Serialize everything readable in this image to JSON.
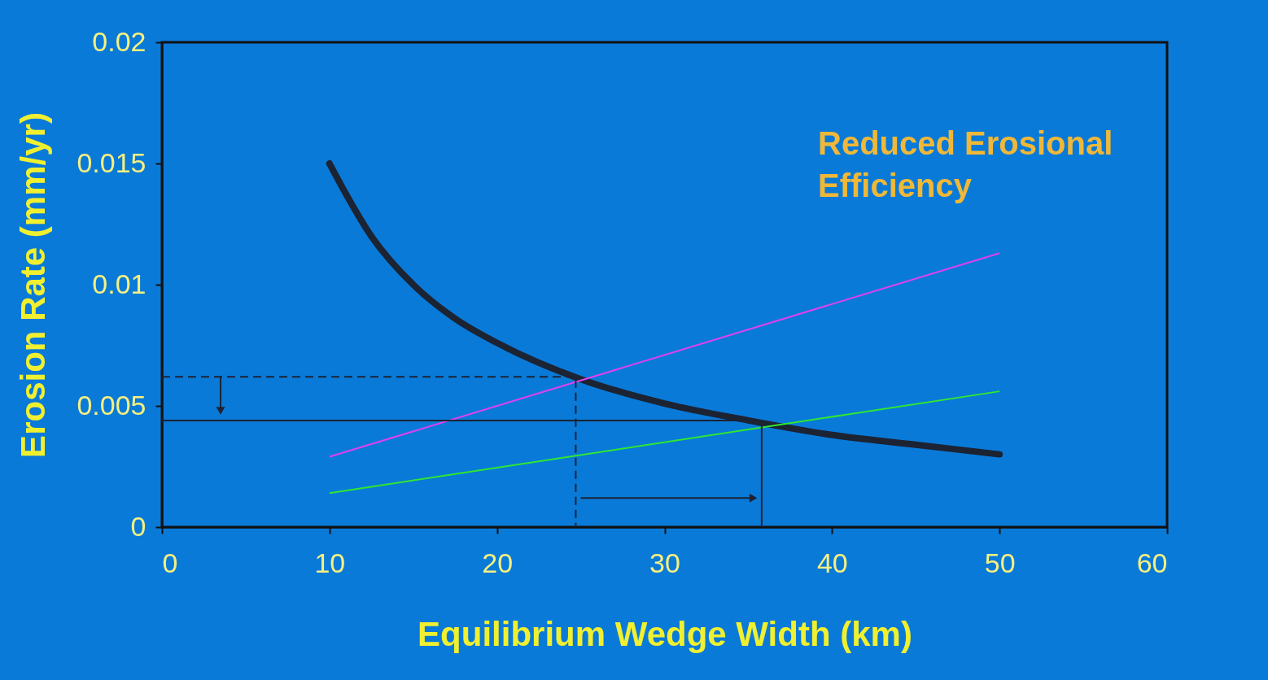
{
  "chart_data": {
    "type": "line",
    "xlabel": "Equilibrium Wedge Width (km)",
    "ylabel": "Erosion Rate (mm/yr)",
    "xlim": [
      0,
      60
    ],
    "ylim": [
      0,
      0.02
    ],
    "xticks": [
      0,
      10,
      20,
      30,
      40,
      50,
      60
    ],
    "yticks": [
      0,
      0.005,
      0.01,
      0.015,
      0.02
    ],
    "annotations": [
      "Reduced Erosional Efficiency"
    ],
    "series": [
      {
        "color": "#1c2333",
        "x": [
          10,
          12.5,
          15,
          17.5,
          20,
          25,
          30,
          35,
          40,
          45,
          50
        ],
        "values": [
          0.015,
          0.012,
          0.01,
          0.0086,
          0.0076,
          0.0061,
          0.0051,
          0.0044,
          0.0038,
          0.0034,
          0.003
        ]
      },
      {
        "color": "#e040f0",
        "x": [
          10,
          50
        ],
        "values": [
          0.0029,
          0.0113
        ]
      },
      {
        "color": "#30e830",
        "x": [
          10,
          50
        ],
        "values": [
          0.0014,
          0.0056
        ]
      },
      {
        "color": "#1c2333",
        "x": [
          0,
          24.7,
          24.7
        ],
        "values": [
          0.0062,
          0.0062,
          0
        ],
        "line_style": "dashed"
      },
      {
        "color": "#1c2333",
        "x": [
          0,
          35.8,
          35.8
        ],
        "values": [
          0.0044,
          0.0044,
          0
        ]
      },
      {
        "color": "#1c2333",
        "x": [
          3.5,
          3.5
        ],
        "values": [
          0.0062,
          0.0048
        ],
        "marker": "triangle"
      },
      {
        "color": "#1c2333",
        "x": [
          25,
          35.3
        ],
        "values": [
          0.0012,
          0.0012
        ],
        "marker": "triangle"
      }
    ]
  }
}
